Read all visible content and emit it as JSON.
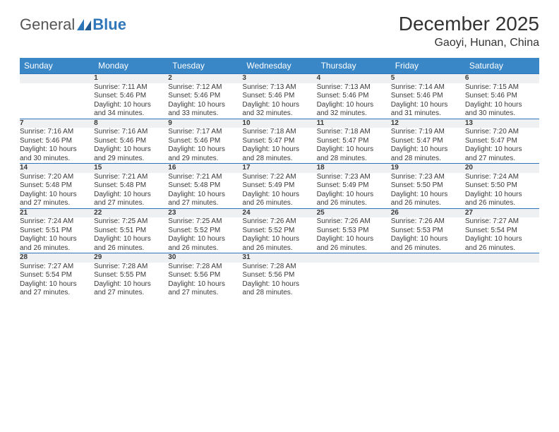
{
  "brand": {
    "part1": "General",
    "part2": "Blue"
  },
  "title": "December 2025",
  "location": "Gaoyi, Hunan, China",
  "colors": {
    "header_bg": "#3a87c8",
    "header_text": "#ffffff",
    "daynum_bg": "#eef0f1",
    "row_border": "#2d76ba",
    "text": "#3a3a3a",
    "brand_blue": "#2d76ba",
    "background": "#ffffff"
  },
  "weekdays": [
    "Sunday",
    "Monday",
    "Tuesday",
    "Wednesday",
    "Thursday",
    "Friday",
    "Saturday"
  ],
  "weeks": [
    {
      "nums": [
        "",
        "1",
        "2",
        "3",
        "4",
        "5",
        "6"
      ],
      "cells": [
        null,
        {
          "sunrise": "Sunrise: 7:11 AM",
          "sunset": "Sunset: 5:46 PM",
          "day1": "Daylight: 10 hours",
          "day2": "and 34 minutes."
        },
        {
          "sunrise": "Sunrise: 7:12 AM",
          "sunset": "Sunset: 5:46 PM",
          "day1": "Daylight: 10 hours",
          "day2": "and 33 minutes."
        },
        {
          "sunrise": "Sunrise: 7:13 AM",
          "sunset": "Sunset: 5:46 PM",
          "day1": "Daylight: 10 hours",
          "day2": "and 32 minutes."
        },
        {
          "sunrise": "Sunrise: 7:13 AM",
          "sunset": "Sunset: 5:46 PM",
          "day1": "Daylight: 10 hours",
          "day2": "and 32 minutes."
        },
        {
          "sunrise": "Sunrise: 7:14 AM",
          "sunset": "Sunset: 5:46 PM",
          "day1": "Daylight: 10 hours",
          "day2": "and 31 minutes."
        },
        {
          "sunrise": "Sunrise: 7:15 AM",
          "sunset": "Sunset: 5:46 PM",
          "day1": "Daylight: 10 hours",
          "day2": "and 30 minutes."
        }
      ]
    },
    {
      "nums": [
        "7",
        "8",
        "9",
        "10",
        "11",
        "12",
        "13"
      ],
      "cells": [
        {
          "sunrise": "Sunrise: 7:16 AM",
          "sunset": "Sunset: 5:46 PM",
          "day1": "Daylight: 10 hours",
          "day2": "and 30 minutes."
        },
        {
          "sunrise": "Sunrise: 7:16 AM",
          "sunset": "Sunset: 5:46 PM",
          "day1": "Daylight: 10 hours",
          "day2": "and 29 minutes."
        },
        {
          "sunrise": "Sunrise: 7:17 AM",
          "sunset": "Sunset: 5:46 PM",
          "day1": "Daylight: 10 hours",
          "day2": "and 29 minutes."
        },
        {
          "sunrise": "Sunrise: 7:18 AM",
          "sunset": "Sunset: 5:47 PM",
          "day1": "Daylight: 10 hours",
          "day2": "and 28 minutes."
        },
        {
          "sunrise": "Sunrise: 7:18 AM",
          "sunset": "Sunset: 5:47 PM",
          "day1": "Daylight: 10 hours",
          "day2": "and 28 minutes."
        },
        {
          "sunrise": "Sunrise: 7:19 AM",
          "sunset": "Sunset: 5:47 PM",
          "day1": "Daylight: 10 hours",
          "day2": "and 28 minutes."
        },
        {
          "sunrise": "Sunrise: 7:20 AM",
          "sunset": "Sunset: 5:47 PM",
          "day1": "Daylight: 10 hours",
          "day2": "and 27 minutes."
        }
      ]
    },
    {
      "nums": [
        "14",
        "15",
        "16",
        "17",
        "18",
        "19",
        "20"
      ],
      "cells": [
        {
          "sunrise": "Sunrise: 7:20 AM",
          "sunset": "Sunset: 5:48 PM",
          "day1": "Daylight: 10 hours",
          "day2": "and 27 minutes."
        },
        {
          "sunrise": "Sunrise: 7:21 AM",
          "sunset": "Sunset: 5:48 PM",
          "day1": "Daylight: 10 hours",
          "day2": "and 27 minutes."
        },
        {
          "sunrise": "Sunrise: 7:21 AM",
          "sunset": "Sunset: 5:48 PM",
          "day1": "Daylight: 10 hours",
          "day2": "and 27 minutes."
        },
        {
          "sunrise": "Sunrise: 7:22 AM",
          "sunset": "Sunset: 5:49 PM",
          "day1": "Daylight: 10 hours",
          "day2": "and 26 minutes."
        },
        {
          "sunrise": "Sunrise: 7:23 AM",
          "sunset": "Sunset: 5:49 PM",
          "day1": "Daylight: 10 hours",
          "day2": "and 26 minutes."
        },
        {
          "sunrise": "Sunrise: 7:23 AM",
          "sunset": "Sunset: 5:50 PM",
          "day1": "Daylight: 10 hours",
          "day2": "and 26 minutes."
        },
        {
          "sunrise": "Sunrise: 7:24 AM",
          "sunset": "Sunset: 5:50 PM",
          "day1": "Daylight: 10 hours",
          "day2": "and 26 minutes."
        }
      ]
    },
    {
      "nums": [
        "21",
        "22",
        "23",
        "24",
        "25",
        "26",
        "27"
      ],
      "cells": [
        {
          "sunrise": "Sunrise: 7:24 AM",
          "sunset": "Sunset: 5:51 PM",
          "day1": "Daylight: 10 hours",
          "day2": "and 26 minutes."
        },
        {
          "sunrise": "Sunrise: 7:25 AM",
          "sunset": "Sunset: 5:51 PM",
          "day1": "Daylight: 10 hours",
          "day2": "and 26 minutes."
        },
        {
          "sunrise": "Sunrise: 7:25 AM",
          "sunset": "Sunset: 5:52 PM",
          "day1": "Daylight: 10 hours",
          "day2": "and 26 minutes."
        },
        {
          "sunrise": "Sunrise: 7:26 AM",
          "sunset": "Sunset: 5:52 PM",
          "day1": "Daylight: 10 hours",
          "day2": "and 26 minutes."
        },
        {
          "sunrise": "Sunrise: 7:26 AM",
          "sunset": "Sunset: 5:53 PM",
          "day1": "Daylight: 10 hours",
          "day2": "and 26 minutes."
        },
        {
          "sunrise": "Sunrise: 7:26 AM",
          "sunset": "Sunset: 5:53 PM",
          "day1": "Daylight: 10 hours",
          "day2": "and 26 minutes."
        },
        {
          "sunrise": "Sunrise: 7:27 AM",
          "sunset": "Sunset: 5:54 PM",
          "day1": "Daylight: 10 hours",
          "day2": "and 26 minutes."
        }
      ]
    },
    {
      "nums": [
        "28",
        "29",
        "30",
        "31",
        "",
        "",
        ""
      ],
      "cells": [
        {
          "sunrise": "Sunrise: 7:27 AM",
          "sunset": "Sunset: 5:54 PM",
          "day1": "Daylight: 10 hours",
          "day2": "and 27 minutes."
        },
        {
          "sunrise": "Sunrise: 7:28 AM",
          "sunset": "Sunset: 5:55 PM",
          "day1": "Daylight: 10 hours",
          "day2": "and 27 minutes."
        },
        {
          "sunrise": "Sunrise: 7:28 AM",
          "sunset": "Sunset: 5:56 PM",
          "day1": "Daylight: 10 hours",
          "day2": "and 27 minutes."
        },
        {
          "sunrise": "Sunrise: 7:28 AM",
          "sunset": "Sunset: 5:56 PM",
          "day1": "Daylight: 10 hours",
          "day2": "and 28 minutes."
        },
        null,
        null,
        null
      ]
    }
  ]
}
